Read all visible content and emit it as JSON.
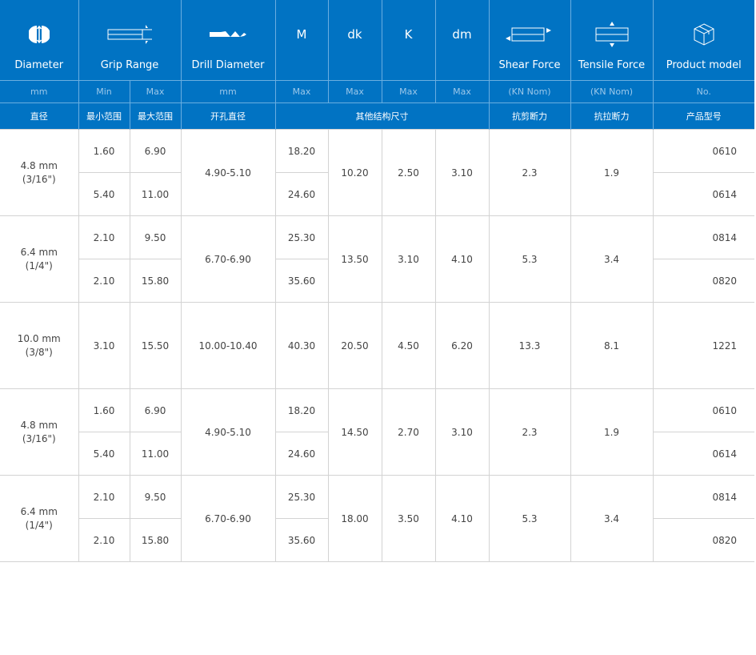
{
  "header": {
    "diameter": {
      "label": "Diameter",
      "unit": "mm",
      "cn": "直径",
      "icon": "rivet-diameter-icon"
    },
    "grip": {
      "label": "Grip Range",
      "min": "Min",
      "max": "Max",
      "cn_min": "最小范围",
      "cn_max": "最大范围",
      "icon": "grip-range-icon"
    },
    "drill": {
      "label": "Drill Diameter",
      "unit": "mm",
      "cn": "开孔直径",
      "icon": "drill-bit-icon"
    },
    "m": {
      "label": "M",
      "unit": "Max"
    },
    "dk": {
      "label": "dk",
      "unit": "Max"
    },
    "k": {
      "label": "K",
      "unit": "Max"
    },
    "dm": {
      "label": "dm",
      "unit": "Max"
    },
    "other_cn": "其他结构尺寸",
    "shear": {
      "label": "Shear Force",
      "unit": "(KN Nom)",
      "cn": "抗剪断力",
      "icon": "shear-force-icon"
    },
    "tensile": {
      "label": "Tensile Force",
      "unit": "(KN Nom)",
      "cn": "抗拉断力",
      "icon": "tensile-force-icon"
    },
    "model": {
      "label": "Product model",
      "unit": "No.",
      "cn": "产品型号",
      "icon": "box-icon"
    }
  },
  "colors": {
    "header_bg": "#0173c3",
    "border": "#d3d3d3",
    "text": "#444444"
  },
  "groups": [
    {
      "diameter": "4.8 mm",
      "inch": "(3/16\")",
      "drill": "4.90-5.10",
      "dk": "10.20",
      "k": "2.50",
      "dm": "3.10",
      "shear": "2.3",
      "tensile": "1.9",
      "rows": [
        {
          "min": "1.60",
          "max": "6.90",
          "m": "18.20",
          "model": "0610"
        },
        {
          "min": "5.40",
          "max": "11.00",
          "m": "24.60",
          "model": "0614"
        }
      ]
    },
    {
      "diameter": "6.4 mm",
      "inch": "(1/4\")",
      "drill": "6.70-6.90",
      "dk": "13.50",
      "k": "3.10",
      "dm": "4.10",
      "shear": "5.3",
      "tensile": "3.4",
      "rows": [
        {
          "min": "2.10",
          "max": "9.50",
          "m": "25.30",
          "model": "0814"
        },
        {
          "min": "2.10",
          "max": "15.80",
          "m": "35.60",
          "model": "0820"
        }
      ]
    },
    {
      "diameter": "10.0 mm",
      "inch": "(3/8\")",
      "drill": "10.00-10.40",
      "dk": "20.50",
      "k": "4.50",
      "dm": "6.20",
      "shear": "13.3",
      "tensile": "8.1",
      "rows": [
        {
          "min": "3.10",
          "max": "15.50",
          "m": "40.30",
          "model": "1221"
        }
      ]
    },
    {
      "diameter": "4.8 mm",
      "inch": "(3/16\")",
      "drill": "4.90-5.10",
      "dk": "14.50",
      "k": "2.70",
      "dm": "3.10",
      "shear": "2.3",
      "tensile": "1.9",
      "rows": [
        {
          "min": "1.60",
          "max": "6.90",
          "m": "18.20",
          "model": "0610"
        },
        {
          "min": "5.40",
          "max": "11.00",
          "m": "24.60",
          "model": "0614"
        }
      ]
    },
    {
      "diameter": "6.4 mm",
      "inch": "(1/4\")",
      "drill": "6.70-6.90",
      "dk": "18.00",
      "k": "3.50",
      "dm": "4.10",
      "shear": "5.3",
      "tensile": "3.4",
      "rows": [
        {
          "min": "2.10",
          "max": "9.50",
          "m": "25.30",
          "model": "0814"
        },
        {
          "min": "2.10",
          "max": "15.80",
          "m": "35.60",
          "model": "0820"
        }
      ]
    }
  ]
}
